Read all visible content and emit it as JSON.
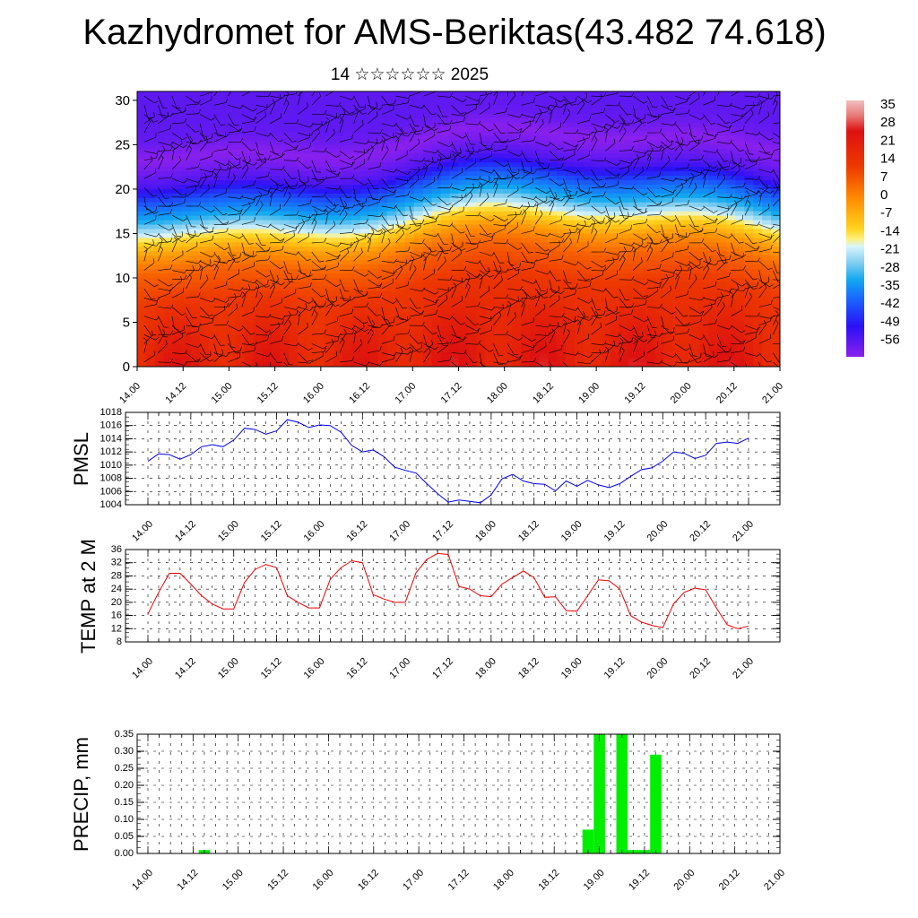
{
  "title": "Kazhydromet for AMS-Beriktas(43.482 74.618)",
  "subtitle": "14 ☆☆☆☆☆☆ 2025",
  "colors": {
    "pmsl_line": "#0000ee",
    "temp_line": "#ee0000",
    "precip_bar": "#00ee00",
    "grid": "#000000"
  },
  "chart_data": [
    {
      "type": "heatmap",
      "x_labels": [
        "14.00",
        "14.12",
        "15.00",
        "15.12",
        "16.00",
        "16.12",
        "17.00",
        "17.12",
        "18.00",
        "18.12",
        "19.00",
        "19.12",
        "20.00",
        "20.12",
        "21.00"
      ],
      "y_ticks": [
        0,
        5,
        10,
        15,
        20,
        25,
        30
      ],
      "ylim": [
        0,
        31
      ],
      "colorbar_labels": [
        "35",
        "28",
        "21",
        "14",
        "7",
        "0",
        "-7",
        "-14",
        "-21",
        "-28",
        "-35",
        "-42",
        "-49",
        "-56"
      ],
      "colorbar_range": [
        -60,
        38
      ],
      "field_profile": [
        [
          0,
          24
        ],
        [
          4,
          21
        ],
        [
          8,
          16
        ],
        [
          12,
          8
        ],
        [
          14,
          0
        ],
        [
          15,
          -6
        ],
        [
          16,
          -12
        ],
        [
          18,
          -28
        ],
        [
          20,
          -38
        ],
        [
          22,
          -52
        ],
        [
          24,
          -58
        ],
        [
          25,
          -60
        ],
        [
          27,
          -55
        ],
        [
          29,
          -54
        ],
        [
          31,
          -54
        ]
      ],
      "overlay": "wind barbs"
    },
    {
      "type": "line",
      "ylabel": "PMSL",
      "x_labels": [
        "14.00",
        "14.12",
        "15.00",
        "15.12",
        "16.00",
        "16.12",
        "17.00",
        "17.12",
        "18.00",
        "18.12",
        "19.00",
        "19.12",
        "20.00",
        "20.12",
        "21.00"
      ],
      "y_ticks": [
        1004,
        1006,
        1008,
        1010,
        1012,
        1014,
        1016,
        1018
      ],
      "ylim": [
        1004,
        1018
      ],
      "series": [
        {
          "x": [
            0,
            3,
            6,
            9,
            12,
            15,
            18,
            21,
            24,
            27,
            30,
            33,
            36,
            39,
            42,
            45,
            48,
            51,
            54,
            57,
            60,
            63,
            66,
            69,
            72,
            75,
            78,
            81,
            84,
            87,
            90,
            93,
            96,
            99,
            102,
            105,
            108,
            111,
            114,
            117,
            120,
            123,
            126,
            129,
            132,
            135,
            138,
            141,
            144,
            147,
            150,
            153,
            156,
            159,
            162,
            165,
            168
          ],
          "values": [
            1010.6,
            1011.7,
            1011.6,
            1010.9,
            1011.6,
            1012.8,
            1013.1,
            1012.8,
            1013.8,
            1015.6,
            1015.4,
            1014.7,
            1015.2,
            1016.9,
            1016.5,
            1015.7,
            1016.1,
            1016.0,
            1015.0,
            1013.0,
            1012.0,
            1012.3,
            1011.3,
            1009.7,
            1009.2,
            1008.8,
            1007.2,
            1005.7,
            1004.4,
            1004.7,
            1004.5,
            1004.3,
            1005.5,
            1007.9,
            1008.6,
            1007.6,
            1007.2,
            1007.1,
            1006.1,
            1007.6,
            1006.8,
            1007.7,
            1007.0,
            1006.6,
            1007.2,
            1008.3,
            1009.3,
            1009.6,
            1010.6,
            1012.0,
            1011.8,
            1011.0,
            1011.5,
            1013.3,
            1013.5,
            1013.3,
            1014.1
          ]
        }
      ]
    },
    {
      "type": "line",
      "ylabel": "TEMP at 2 M",
      "x_labels": [
        "14.00",
        "14.12",
        "15.00",
        "15.12",
        "16.00",
        "16.12",
        "17.00",
        "17.12",
        "18.00",
        "18.12",
        "19.00",
        "19.12",
        "20.00",
        "20.12",
        "21.00"
      ],
      "y_ticks": [
        8,
        12,
        16,
        20,
        24,
        28,
        32,
        36
      ],
      "ylim": [
        8,
        36
      ],
      "series": [
        {
          "x": [
            0,
            3,
            6,
            9,
            12,
            15,
            18,
            21,
            24,
            27,
            30,
            33,
            36,
            39,
            42,
            45,
            48,
            51,
            54,
            57,
            60,
            63,
            66,
            69,
            72,
            75,
            78,
            81,
            84,
            87,
            90,
            93,
            96,
            99,
            102,
            105,
            108,
            111,
            114,
            117,
            120,
            123,
            126,
            129,
            132,
            135,
            138,
            141,
            144,
            147,
            150,
            153,
            156,
            159,
            162,
            165,
            168
          ],
          "values": [
            16.5,
            23,
            28.8,
            28.8,
            25.5,
            22,
            19.5,
            18,
            18,
            26,
            30,
            31.5,
            30.5,
            22,
            20,
            18.3,
            18.3,
            27,
            30.5,
            32.6,
            32,
            22.3,
            21,
            20,
            20,
            29,
            33,
            34.8,
            34.5,
            24.8,
            24,
            22,
            21.7,
            25.5,
            27.5,
            29.5,
            27.5,
            21.5,
            21.7,
            17.5,
            17.3,
            22,
            26.8,
            26.5,
            24,
            16,
            14,
            13,
            12.3,
            19.5,
            23,
            24.3,
            23.8,
            18.3,
            13.2,
            12,
            12.8
          ]
        }
      ]
    },
    {
      "type": "bar",
      "ylabel": "PRECIP, mm",
      "x_labels": [
        "14.00",
        "14.12",
        "15.00",
        "15.12",
        "16.00",
        "16.12",
        "17.00",
        "17.12",
        "18.00",
        "18.12",
        "19.00",
        "19.12",
        "20.00",
        "20.12",
        "21.00"
      ],
      "y_ticks": [
        "0.00",
        "0.05",
        "0.10",
        "0.15",
        "0.20",
        "0.25",
        "0.30",
        "0.35"
      ],
      "ylim": [
        0,
        0.35
      ],
      "bars": [
        {
          "x": 15,
          "value": 0.01
        },
        {
          "x": 117,
          "value": 0.07
        },
        {
          "x": 120,
          "value": 0.35
        },
        {
          "x": 126,
          "value": 0.35
        },
        {
          "x": 129,
          "value": 0.01
        },
        {
          "x": 132,
          "value": 0.01
        },
        {
          "x": 135,
          "value": 0.29
        }
      ]
    }
  ]
}
